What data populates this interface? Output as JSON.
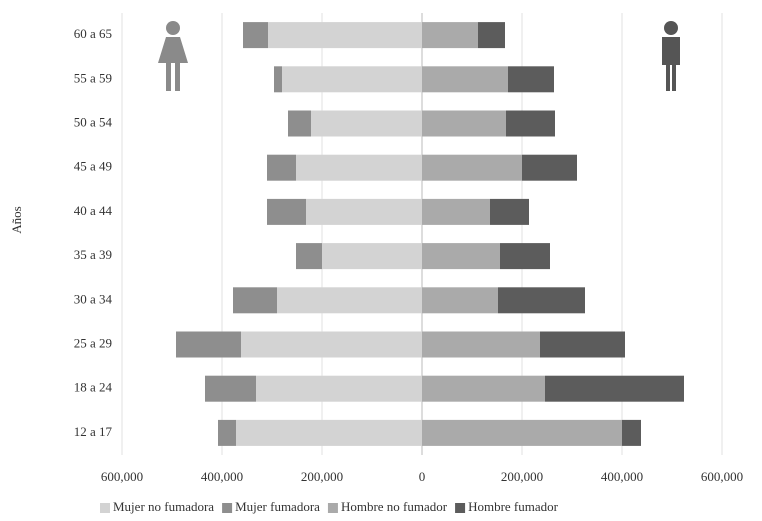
{
  "chart_data": {
    "type": "bar",
    "orientation": "horizontal",
    "stacked": true,
    "y_label": "Años",
    "categories": [
      "60 a 65",
      "55 a 59",
      "50 a 54",
      "45 a 49",
      "40 a 44",
      "35 a 39",
      "30 a 34",
      "25 a 29",
      "18 a 24",
      "12 a 17"
    ],
    "series": [
      {
        "name": "Mujer no fumadora",
        "color": "#d3d3d3",
        "values": [
          -308000,
          -280000,
          -222000,
          -252000,
          -232000,
          -200000,
          -290000,
          -362000,
          -332000,
          -372000
        ]
      },
      {
        "name": "Mujer fumadora",
        "color": "#8e8e8e",
        "values": [
          -50000,
          -16000,
          -46000,
          -58000,
          -78000,
          -52000,
          -88000,
          -130000,
          -102000,
          -36000
        ]
      },
      {
        "name": "Hombre no fumador",
        "color": "#aaaaaa",
        "values": [
          112000,
          172000,
          168000,
          200000,
          136000,
          156000,
          152000,
          236000,
          246000,
          400000
        ]
      },
      {
        "name": "Hombre fumador",
        "color": "#5c5c5c",
        "values": [
          54000,
          92000,
          98000,
          110000,
          78000,
          100000,
          174000,
          170000,
          278000,
          38000
        ]
      }
    ],
    "xlim": [
      -600000,
      600000
    ],
    "xticks": [
      {
        "value": -600000,
        "label": "600,000"
      },
      {
        "value": -400000,
        "label": "400,000"
      },
      {
        "value": -200000,
        "label": "200,000"
      },
      0,
      {
        "value": 200000,
        "label": "200,000"
      },
      {
        "value": 400000,
        "label": "400,000"
      },
      {
        "value": 600000,
        "label": "600,000"
      }
    ],
    "grid": true,
    "legend": "bottom"
  }
}
